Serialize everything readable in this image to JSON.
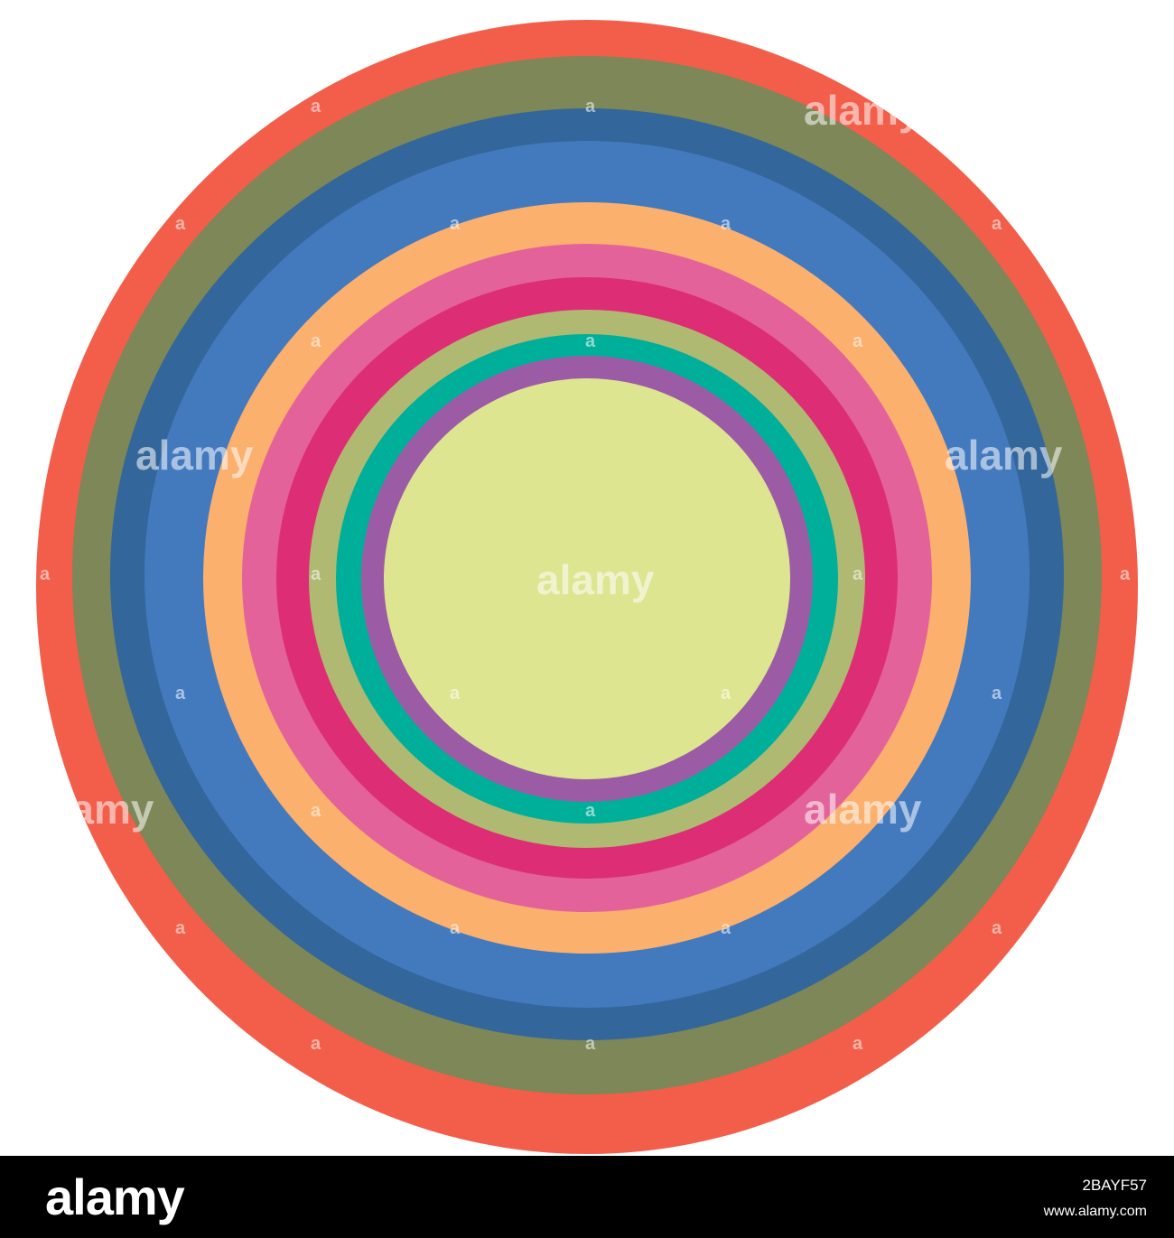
{
  "image": {
    "background_color": "#ffffff",
    "rings": [
      {
        "color": "#F35E4A"
      },
      {
        "color": "#7D8757"
      },
      {
        "color": "#33669A"
      },
      {
        "color": "#437ABE"
      },
      {
        "color": "#FCB06D"
      },
      {
        "color": "#E3629A"
      },
      {
        "color": "#DD2D75"
      },
      {
        "color": "#B0B972"
      },
      {
        "color": "#00AF9A"
      },
      {
        "color": "#9B5CA5"
      },
      {
        "color": "#DDE591"
      }
    ],
    "watermark": {
      "text": "alamy",
      "small_mark": "a"
    }
  },
  "footer": {
    "background_color": "#000000",
    "logo_text": "alamy",
    "image_id": "2BAYF57",
    "url": "www.alamy.com"
  }
}
